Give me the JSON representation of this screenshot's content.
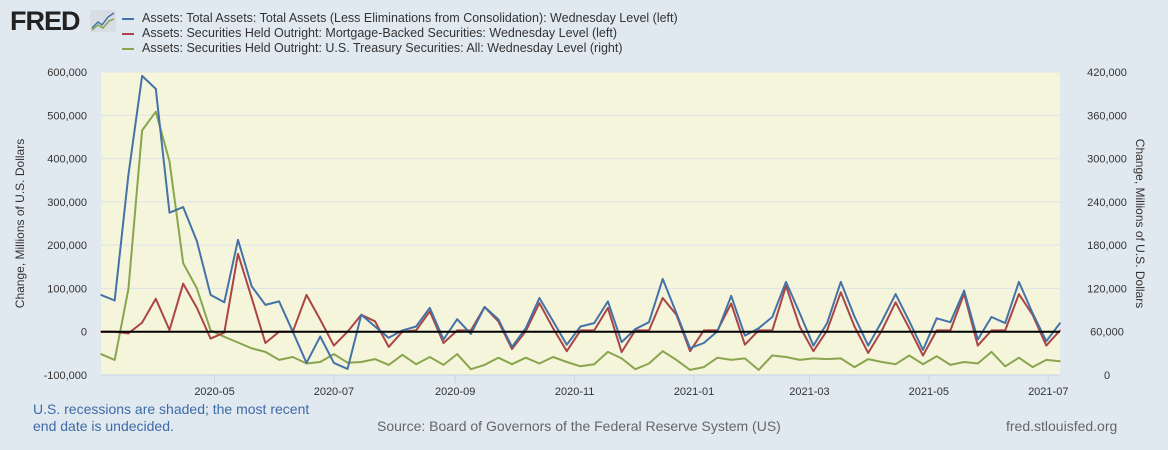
{
  "logo": {
    "text": "FRED",
    "icon": "line-chart-icon"
  },
  "legend": [
    {
      "label": "Assets: Total Assets: Total Assets (Less Eliminations from Consolidation): Wednesday Level (left)",
      "color": "#4572a7"
    },
    {
      "label": "Assets: Securities Held Outright: Mortgage-Backed Securities: Wednesday Level (left)",
      "color": "#aa4643"
    },
    {
      "label": "Assets: Securities Held Outright: U.S. Treasury Securities: All: Wednesday Level (right)",
      "color": "#89a54e"
    }
  ],
  "footer": {
    "note": "U.S. recessions are shaded; the most recent end date is undecided.",
    "source": "Source: Board of Governors of the Federal Reserve System (US)",
    "site": "fred.stlouisfed.org"
  },
  "chart_data": {
    "type": "line",
    "ylabel_left": "Change, Millions of U.S. Dollars",
    "ylabel_right": "Change, Millions of U.S. Dollars",
    "ylim_left": [
      -100000,
      600000
    ],
    "ylim_right": [
      0,
      420000
    ],
    "yticks_left": [
      "-100,000",
      "0",
      "100,000",
      "200,000",
      "300,000",
      "400,000",
      "500,000",
      "600,000"
    ],
    "yticks_right": [
      "0",
      "60,000",
      "120,000",
      "180,000",
      "240,000",
      "300,000",
      "360,000",
      "420,000"
    ],
    "xticks": [
      "2020-05",
      "2020-07",
      "2020-09",
      "2020-11",
      "2021-01",
      "2021-03",
      "2021-05",
      "2021-07"
    ],
    "grid": "horizontal",
    "recession_shading": true,
    "background_shade": "#f5f5dc",
    "x": [
      "2020-03-04",
      "2020-03-11",
      "2020-03-18",
      "2020-03-25",
      "2020-04-01",
      "2020-04-08",
      "2020-04-15",
      "2020-04-22",
      "2020-04-29",
      "2020-05-06",
      "2020-05-13",
      "2020-05-20",
      "2020-05-27",
      "2020-06-03",
      "2020-06-10",
      "2020-06-17",
      "2020-06-24",
      "2020-07-01",
      "2020-07-08",
      "2020-07-15",
      "2020-07-22",
      "2020-07-29",
      "2020-08-05",
      "2020-08-12",
      "2020-08-19",
      "2020-08-26",
      "2020-09-02",
      "2020-09-09",
      "2020-09-16",
      "2020-09-23",
      "2020-09-30",
      "2020-10-07",
      "2020-10-14",
      "2020-10-21",
      "2020-10-28",
      "2020-11-04",
      "2020-11-11",
      "2020-11-18",
      "2020-11-25",
      "2020-12-02",
      "2020-12-09",
      "2020-12-16",
      "2020-12-23",
      "2020-12-30",
      "2021-01-06",
      "2021-01-13",
      "2021-01-20",
      "2021-01-27",
      "2021-02-03",
      "2021-02-10",
      "2021-02-17",
      "2021-02-24",
      "2021-03-03",
      "2021-03-10",
      "2021-03-17",
      "2021-03-24",
      "2021-03-31",
      "2021-04-07",
      "2021-04-14",
      "2021-04-21",
      "2021-04-28",
      "2021-05-05",
      "2021-05-12",
      "2021-05-19",
      "2021-05-26",
      "2021-06-02",
      "2021-06-09",
      "2021-06-16",
      "2021-06-23",
      "2021-06-30",
      "2021-07-07"
    ],
    "series": [
      {
        "name": "Assets: Total Assets: Total Assets (Less Eliminations from Consolidation): Wednesday Level (left)",
        "axis": "left",
        "color": "#4572a7",
        "values": [
          85000,
          72000,
          362000,
          591000,
          561000,
          275000,
          288000,
          209000,
          85000,
          68000,
          212000,
          105000,
          62000,
          70000,
          0,
          -72000,
          -11000,
          -72000,
          -86000,
          39000,
          12000,
          -14000,
          3000,
          12000,
          55000,
          -18000,
          29000,
          -5000,
          57000,
          29000,
          -35000,
          8000,
          78000,
          24000,
          -30000,
          12000,
          20000,
          70000,
          -24000,
          6000,
          22000,
          122000,
          43000,
          -38000,
          -26000,
          1000,
          83000,
          -9000,
          8000,
          34000,
          115000,
          43000,
          -32000,
          20000,
          115000,
          35000,
          -32000,
          24000,
          87000,
          24000,
          -42000,
          31000,
          22000,
          95000,
          -18000,
          34000,
          20000,
          115000,
          43000,
          -22000,
          20000
        ]
      },
      {
        "name": "Assets: Securities Held Outright: Mortgage-Backed Securities: Wednesday Level (left)",
        "axis": "left",
        "color": "#aa4643",
        "values": [
          0,
          0,
          -4000,
          21000,
          76000,
          4000,
          111000,
          55000,
          -16000,
          -2000,
          180000,
          78000,
          -26000,
          0,
          0,
          85000,
          28000,
          -32000,
          0,
          39000,
          24000,
          -35000,
          0,
          3000,
          47000,
          -26000,
          3000,
          3000,
          57000,
          24000,
          -40000,
          1000,
          66000,
          8000,
          -45000,
          3000,
          3000,
          55000,
          -47000,
          3000,
          3000,
          78000,
          39000,
          -45000,
          3000,
          3000,
          65000,
          -30000,
          3000,
          3000,
          106000,
          12000,
          -45000,
          3000,
          91000,
          12000,
          -49000,
          3000,
          68000,
          8000,
          -55000,
          3000,
          3000,
          88000,
          -32000,
          3000,
          3000,
          87000,
          39000,
          -32000,
          3000
        ]
      },
      {
        "name": "Assets: Securities Held Outright: U.S. Treasury Securities: All: Wednesday Level (right)",
        "axis": "right",
        "color": "#89a54e",
        "values": [
          29000,
          21000,
          119000,
          339000,
          365000,
          296000,
          155000,
          120000,
          62000,
          53000,
          45000,
          37000,
          32000,
          21000,
          25000,
          16000,
          18000,
          29000,
          17000,
          18000,
          22000,
          14000,
          28000,
          15000,
          25000,
          14000,
          29000,
          8000,
          14000,
          24000,
          15000,
          24000,
          16000,
          25000,
          18000,
          12000,
          15000,
          32000,
          23000,
          8000,
          16000,
          33000,
          21000,
          7000,
          11000,
          24000,
          21000,
          23000,
          7000,
          27000,
          25000,
          21000,
          23000,
          22000,
          23000,
          11000,
          22000,
          18000,
          15000,
          27000,
          15000,
          26000,
          14000,
          18000,
          16000,
          32000,
          12000,
          24000,
          11000,
          21000,
          19000
        ]
      }
    ]
  }
}
